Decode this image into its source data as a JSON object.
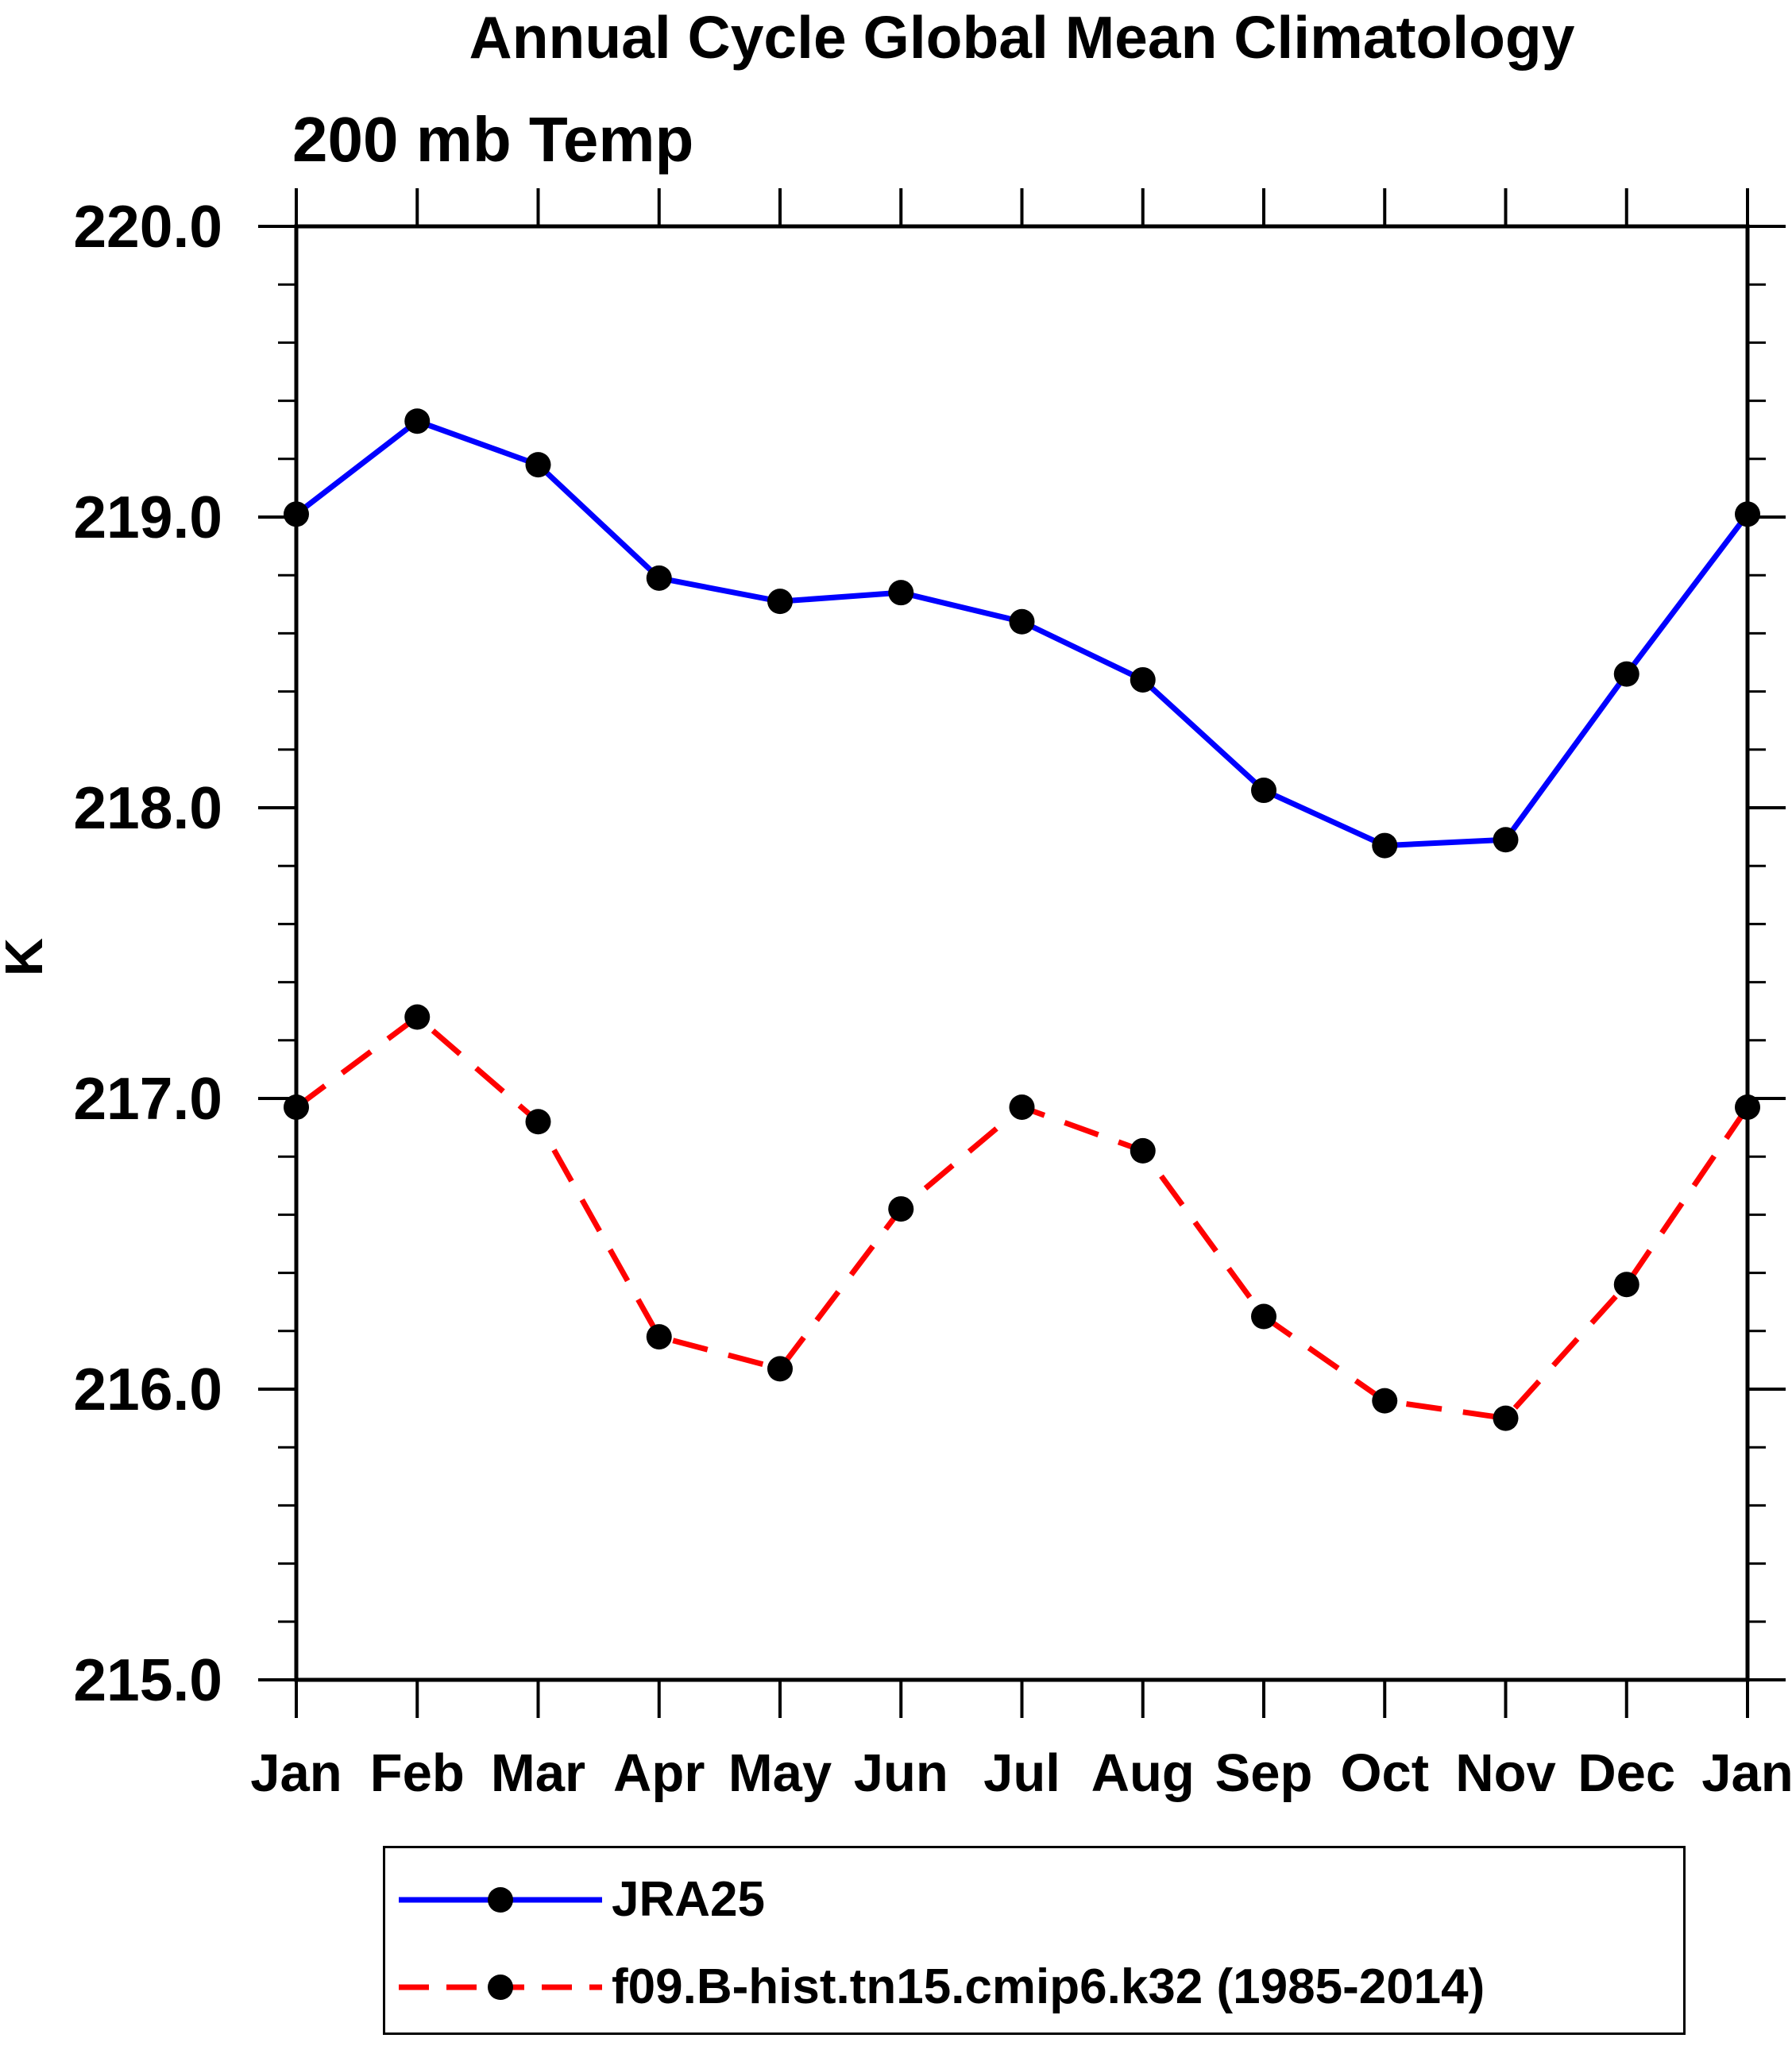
{
  "chart_data": {
    "type": "line",
    "title": "Annual Cycle Global Mean Climatology",
    "subtitle": "200 mb Temp",
    "ylabel": "K",
    "xlabel": "",
    "categories": [
      "Jan",
      "Feb",
      "Mar",
      "Apr",
      "May",
      "Jun",
      "Jul",
      "Aug",
      "Sep",
      "Oct",
      "Nov",
      "Dec",
      "Jan"
    ],
    "ylim": [
      215.0,
      220.0
    ],
    "ytick_values": [
      220.0,
      219.0,
      218.0,
      217.0,
      216.0,
      215.0
    ],
    "ytick_labels": [
      "220.0",
      "219.0",
      "218.0",
      "217.0",
      "216.0",
      "215.0"
    ],
    "minor_tick_step": 0.2,
    "grid": false,
    "legend_position": "bottom",
    "frame_color": "#000000",
    "marker_color": "#000000",
    "series": [
      {
        "name": "JRA25",
        "color": "#0000ff",
        "line_style": "solid",
        "values": [
          219.01,
          219.33,
          219.18,
          218.79,
          218.71,
          218.74,
          218.64,
          218.44,
          218.06,
          217.87,
          217.89,
          218.46,
          219.01
        ]
      },
      {
        "name": "f09.B-hist.tn15.cmip6.k32 (1985-2014)",
        "color": "#ff0000",
        "line_style": "dashed",
        "values": [
          216.97,
          217.28,
          216.92,
          216.18,
          216.07,
          216.62,
          216.97,
          216.82,
          216.25,
          215.96,
          215.9,
          216.36,
          216.97
        ]
      }
    ]
  }
}
